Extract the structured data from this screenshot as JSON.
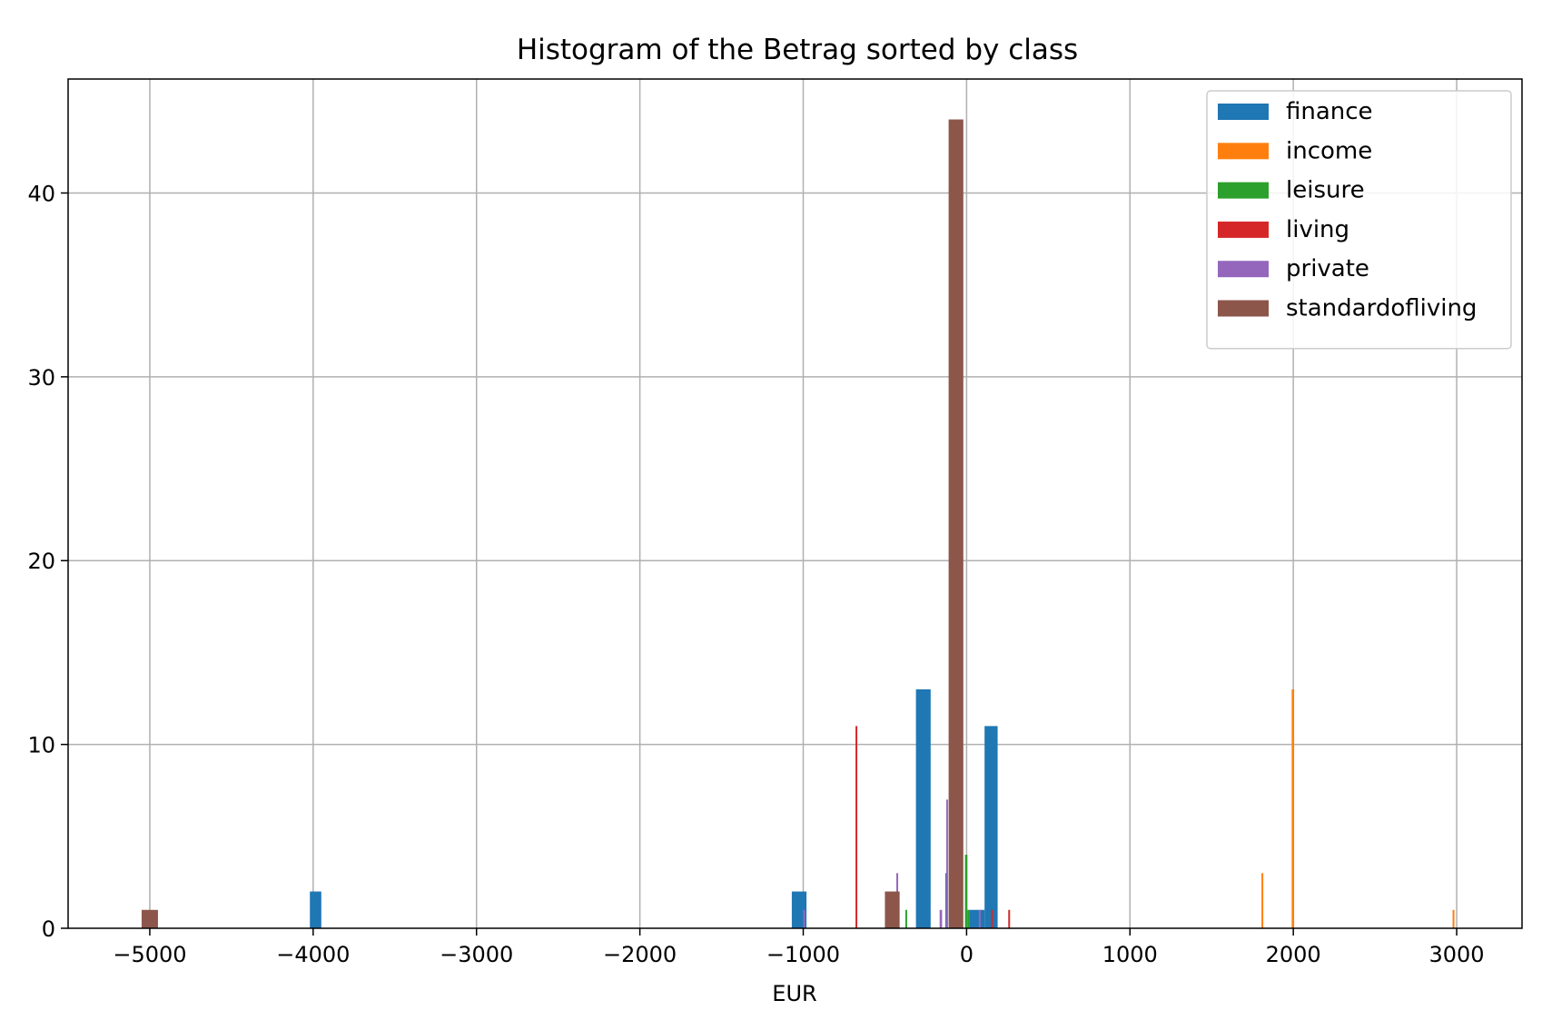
{
  "chart_data": {
    "type": "bar",
    "title": "Histogram of the Betrag sorted by class",
    "xlabel": "EUR",
    "ylabel": "",
    "xlim": [
      -5500,
      3400
    ],
    "ylim": [
      0,
      46.2
    ],
    "xticks": [
      -5000,
      -4000,
      -3000,
      -2000,
      -1000,
      0,
      1000,
      2000,
      3000
    ],
    "xtick_labels": [
      "−5000",
      "−4000",
      "−3000",
      "−2000",
      "−1000",
      "0",
      "1000",
      "2000",
      "3000"
    ],
    "yticks": [
      0,
      10,
      20,
      30,
      40
    ],
    "ytick_labels": [
      "0",
      "10",
      "20",
      "30",
      "40"
    ],
    "grid": true,
    "legend_position": "top-right",
    "series": [
      {
        "name": "finance",
        "color": "#1f77b4",
        "bars": [
          {
            "x0": -4020,
            "x1": -3950,
            "count": 2
          },
          {
            "x0": -1070,
            "x1": -980,
            "count": 2
          },
          {
            "x0": -310,
            "x1": -220,
            "count": 13
          },
          {
            "x0": -130,
            "x1": -115,
            "count": 3
          },
          {
            "x0": 20,
            "x1": 110,
            "count": 1
          },
          {
            "x0": 110,
            "x1": 190,
            "count": 11
          }
        ]
      },
      {
        "name": "income",
        "color": "#ff7f0e",
        "bars": [
          {
            "x0": 1805,
            "x1": 1815,
            "count": 3
          },
          {
            "x0": 1990,
            "x1": 2005,
            "count": 13
          },
          {
            "x0": 2975,
            "x1": 2985,
            "count": 1
          }
        ]
      },
      {
        "name": "leisure",
        "color": "#2ca02c",
        "bars": [
          {
            "x0": -375,
            "x1": -365,
            "count": 1
          },
          {
            "x0": -10,
            "x1": 5,
            "count": 4
          },
          {
            "x0": 5,
            "x1": 20,
            "count": 1
          }
        ]
      },
      {
        "name": "living",
        "color": "#d62728",
        "bars": [
          {
            "x0": -680,
            "x1": -670,
            "count": 11
          },
          {
            "x0": 150,
            "x1": 160,
            "count": 1
          },
          {
            "x0": 255,
            "x1": 265,
            "count": 1
          }
        ]
      },
      {
        "name": "private",
        "color": "#9467bd",
        "bars": [
          {
            "x0": -1000,
            "x1": -990,
            "count": 1
          },
          {
            "x0": -430,
            "x1": -420,
            "count": 3
          },
          {
            "x0": -165,
            "x1": -150,
            "count": 1
          },
          {
            "x0": -125,
            "x1": -115,
            "count": 7
          },
          {
            "x0": 75,
            "x1": 85,
            "count": 1
          }
        ]
      },
      {
        "name": "standardofliving",
        "color": "#8c564b",
        "bars": [
          {
            "x0": -5050,
            "x1": -4950,
            "count": 1
          },
          {
            "x0": -500,
            "x1": -410,
            "count": 2
          },
          {
            "x0": -110,
            "x1": -20,
            "count": 44
          }
        ]
      }
    ]
  }
}
